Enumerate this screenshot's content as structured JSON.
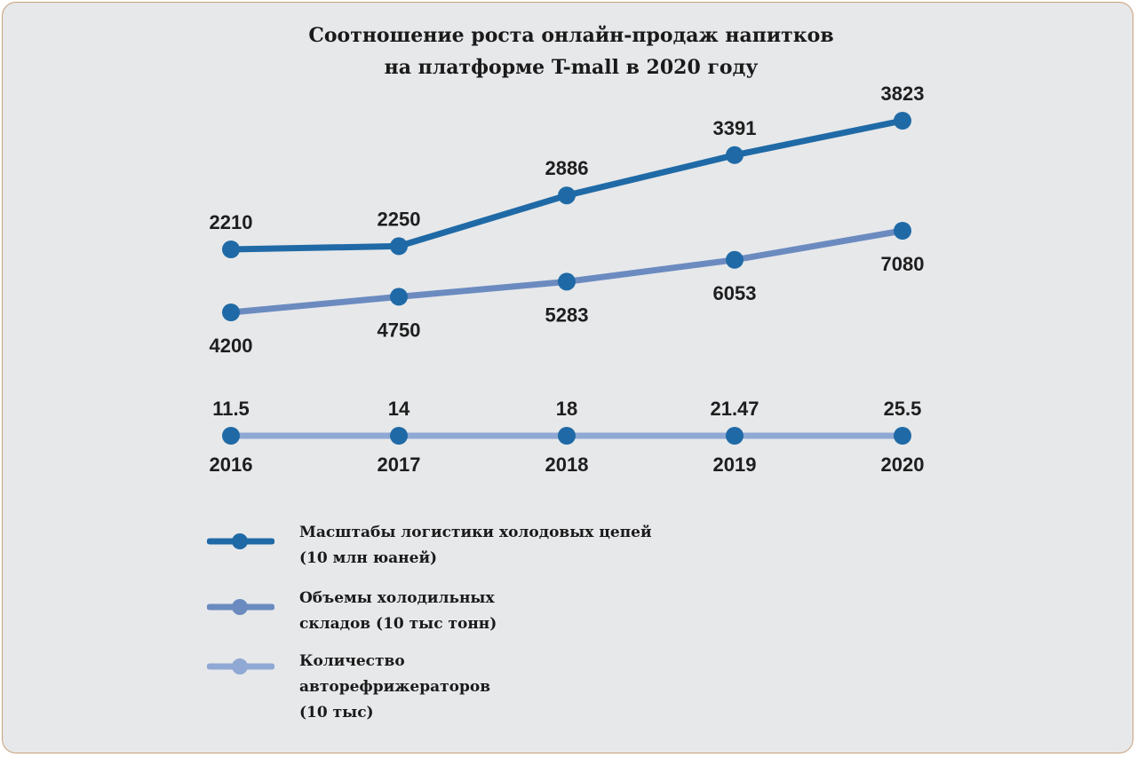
{
  "title": {
    "line1": "Соотношение роста онлайн-продаж напитков",
    "line2": "на платформе T-mall в 2020 году"
  },
  "chart_data": {
    "type": "line",
    "title": "Соотношение роста онлайн-продаж напитков на платформе T-mall в 2020 году",
    "categories": [
      "2016",
      "2017",
      "2018",
      "2019",
      "2020"
    ],
    "series": [
      {
        "name": "Масштабы логистики холодовых цепей (10 млн юаней)",
        "values": [
          2210,
          2250,
          2886,
          3391,
          3823
        ],
        "labels": [
          "2210",
          "2250",
          "2886",
          "3391",
          "3823"
        ],
        "color": "#1f6aa6"
      },
      {
        "name": "Объемы холодильных складов (10 тыс тонн)",
        "values": [
          4200,
          4750,
          5283,
          6053,
          7080
        ],
        "labels": [
          "4200",
          "4750",
          "5283",
          "6053",
          "7080"
        ],
        "color": "#6b8bc0"
      },
      {
        "name": "Количество авторефрижераторов (10 тыс)",
        "values": [
          11.5,
          14,
          18,
          21.47,
          25.5
        ],
        "labels": [
          "11.5",
          "14",
          "18",
          "21.47",
          "25.5"
        ],
        "color": "#8fa8d4"
      }
    ],
    "marker_color": "#1f6aa6",
    "legend_position": "bottom-left",
    "grid": false
  },
  "legend": [
    {
      "text": "Масштабы логистики холодовых цепей\n(10 млн юаней)"
    },
    {
      "text": "Объемы холодильных\nскладов (10 тыс тонн)"
    },
    {
      "text": "Количество\nавторефрижераторов\n(10 тыс)"
    }
  ],
  "colors": {
    "background": "#e7e8ea",
    "border": "#c9a07a"
  }
}
